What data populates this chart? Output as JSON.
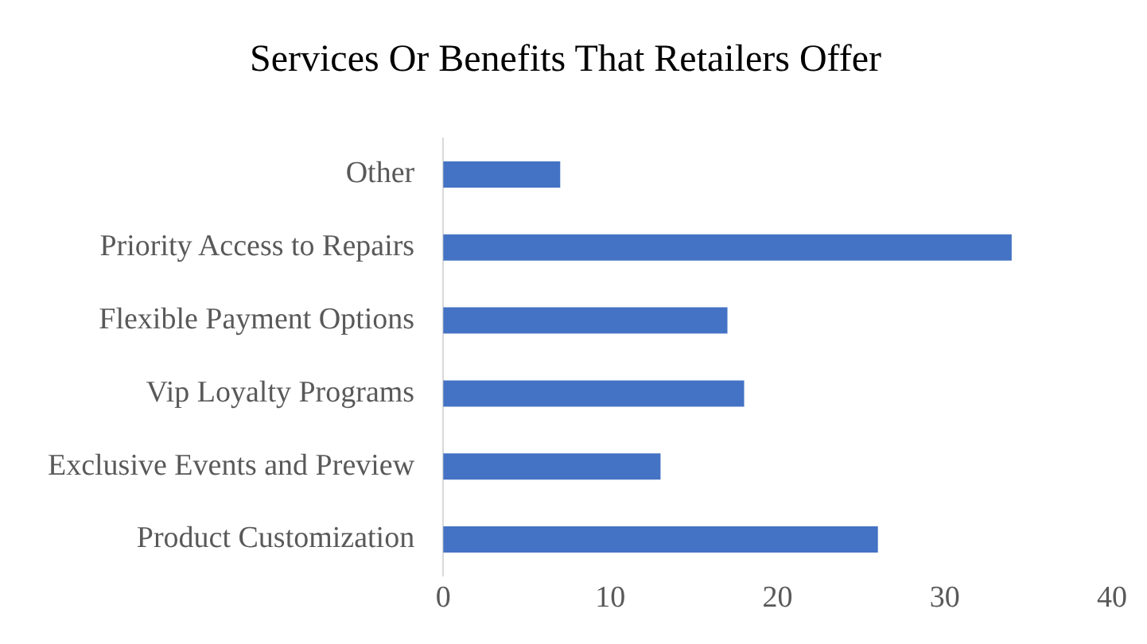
{
  "chart_data": {
    "type": "bar",
    "orientation": "horizontal",
    "title": "Services Or Benefits That Retailers Offer",
    "categories": [
      "Other",
      "Priority Access to Repairs",
      "Flexible Payment Options",
      "Vip Loyalty Programs",
      "Exclusive Events and Preview",
      "Product Customization"
    ],
    "values": [
      7,
      34,
      17,
      18,
      13,
      26
    ],
    "color": "#4472c4",
    "xlim": [
      0,
      40
    ],
    "xticks": [
      0,
      10,
      20,
      30,
      40
    ]
  }
}
